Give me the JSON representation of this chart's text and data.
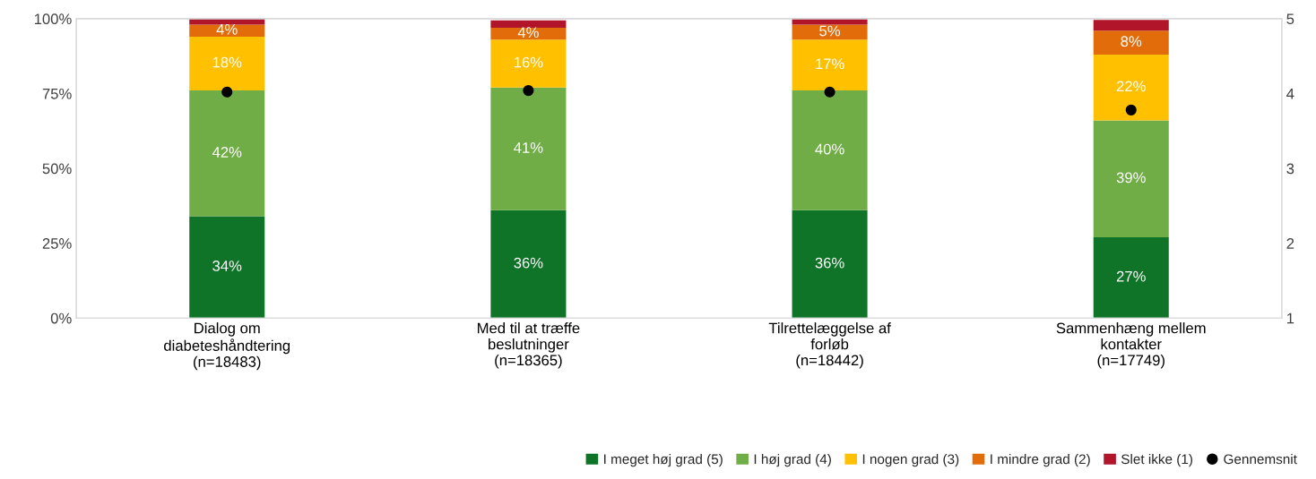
{
  "chart_data": {
    "type": "bar",
    "stacked": true,
    "categories": [
      "Dialog om\ndiabeteshåndtering\n(n=18483)",
      "Med til at træffe\nbeslutninger\n(n=18365)",
      "Tilrettelæggelse af\nforløb\n(n=18442)",
      "Sammenhæng mellem\nkontakter\n(n=17749)"
    ],
    "series": [
      {
        "name": "I meget høj grad (5)",
        "color": "#0f7428",
        "values": [
          34,
          36,
          36,
          27
        ],
        "value_labels": [
          "34%",
          "36%",
          "36%",
          "27%"
        ]
      },
      {
        "name": "I høj grad (4)",
        "color": "#70ad47",
        "values": [
          42,
          41,
          40,
          39
        ],
        "value_labels": [
          "42%",
          "41%",
          "40%",
          "39%"
        ]
      },
      {
        "name": "I nogen grad (3)",
        "color": "#ffc000",
        "values": [
          18,
          16,
          17,
          22
        ],
        "value_labels": [
          "18%",
          "16%",
          "17%",
          "22%"
        ]
      },
      {
        "name": "I mindre grad (2)",
        "color": "#e36c0a",
        "values": [
          4,
          4,
          5,
          8
        ],
        "value_labels": [
          "4%",
          "4%",
          "5%",
          "8%"
        ]
      },
      {
        "name": "Slet ikke (1)",
        "color": "#b0152a",
        "values": [
          2,
          2.4,
          2.4,
          3.6
        ]
      },
      {
        "name": "Gennemsnit",
        "type": "scatter",
        "axis": "y2",
        "color": "#000000",
        "marker": "circle",
        "x": [
          "Dialog om\ndiabeteshåndtering\n(n=18483)",
          "Med til at træffe\nbeslutninger\n(n=18365)",
          "Tilrettelæggelse af\nforløb\n(n=18442)",
          "Sammenhæng mellem\nkontakter\n(n=17749)"
        ],
        "values": [
          4.02,
          4.04,
          4.02,
          3.78
        ]
      }
    ],
    "ylim": [
      0,
      100
    ],
    "yticks": [
      {
        "value": 0,
        "label": "0%"
      },
      {
        "value": 25,
        "label": "25%"
      },
      {
        "value": 50,
        "label": "50%"
      },
      {
        "value": 75,
        "label": "75%"
      },
      {
        "value": 100,
        "label": "100%"
      }
    ],
    "y2lim": [
      1,
      5
    ],
    "y2ticks": [
      1,
      2,
      3,
      4,
      5
    ],
    "grid": false,
    "legend": "bottom right"
  }
}
